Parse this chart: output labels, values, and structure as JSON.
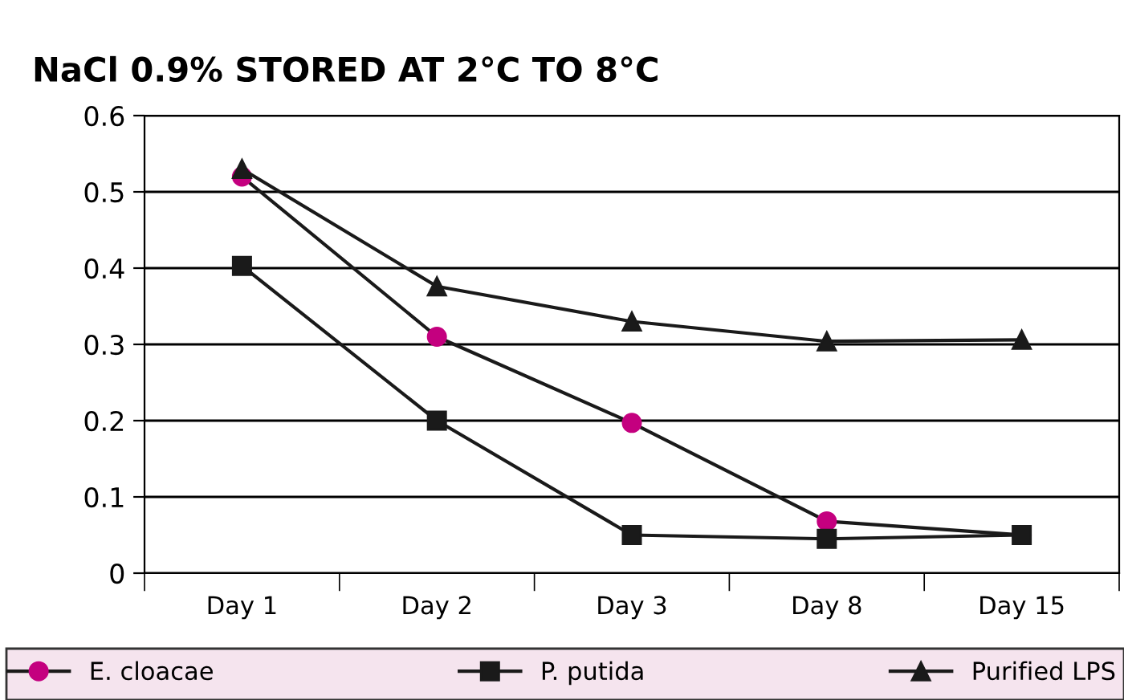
{
  "chart_data": {
    "type": "line",
    "title": "NaCl 0.9% STORED AT 2°C TO 8°C",
    "categories": [
      "Day 1",
      "Day 2",
      "Day 3",
      "Day 8",
      "Day 15"
    ],
    "series": [
      {
        "name": "E. cloacae",
        "color": "#c4007f",
        "marker": "circle",
        "values": [
          0.52,
          0.31,
          0.197,
          0.068,
          0.05
        ]
      },
      {
        "name": "P. putida",
        "color": "#1a1a1a",
        "marker": "square",
        "values": [
          0.403,
          0.2,
          0.05,
          0.045,
          0.05
        ]
      },
      {
        "name": "Purified LPS",
        "color": "#1a1a1a",
        "marker": "triangle",
        "values": [
          0.53,
          0.376,
          0.33,
          0.304,
          0.306
        ]
      }
    ],
    "ylim": [
      0,
      0.6
    ],
    "yticks": [
      0,
      0.1,
      0.2,
      0.3,
      0.4,
      0.5,
      0.6
    ],
    "grid": "y",
    "legend": "bottom",
    "line_style": "solid"
  }
}
